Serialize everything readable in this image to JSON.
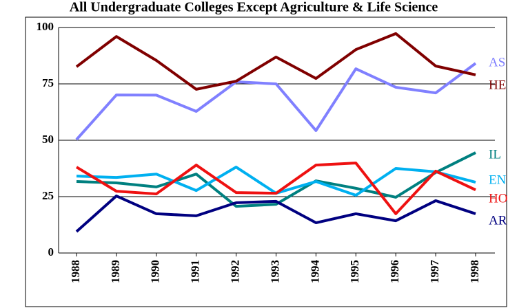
{
  "chart_data": {
    "type": "line",
    "title": "All Undergraduate Colleges Except Agriculture & Life Science",
    "categories": [
      "1988",
      "1989",
      "1990",
      "1991",
      "1992",
      "1993",
      "1994",
      "1995",
      "1996",
      "1997",
      "1998"
    ],
    "ylim": [
      0,
      100
    ],
    "yticks": [
      0,
      25,
      50,
      75,
      100
    ],
    "grid": true,
    "series": [
      {
        "name": "AS",
        "color": "#8080ff",
        "values": [
          50.3,
          70.1,
          70,
          62.8,
          75.9,
          75,
          54.3,
          81.7,
          73.5,
          71,
          84.1
        ]
      },
      {
        "name": "HE",
        "color": "#800000",
        "values": [
          82.6,
          96,
          85.4,
          72.6,
          76.2,
          86.9,
          77.4,
          90.2,
          97.3,
          82.9,
          79
        ]
      },
      {
        "name": "IL",
        "color": "#008080",
        "values": [
          31.7,
          31.1,
          29.3,
          35,
          20.7,
          21.6,
          32,
          28.7,
          24.7,
          35.7,
          44.5
        ]
      },
      {
        "name": "EN",
        "color": "#00b0f0",
        "values": [
          34.1,
          33.5,
          35,
          27.7,
          38.1,
          26.5,
          31.7,
          25.6,
          37.5,
          36,
          31.4
        ]
      },
      {
        "name": "HO",
        "color": "#ee1111",
        "values": [
          38.1,
          27.4,
          26.2,
          39,
          26.8,
          26.5,
          39,
          39.9,
          17.4,
          36.3,
          28
        ]
      },
      {
        "name": "AR",
        "color": "#000080",
        "values": [
          9.5,
          25.3,
          17.4,
          16.5,
          22.3,
          22.9,
          13.4,
          17.4,
          14.3,
          23.2,
          17.4
        ]
      }
    ]
  }
}
